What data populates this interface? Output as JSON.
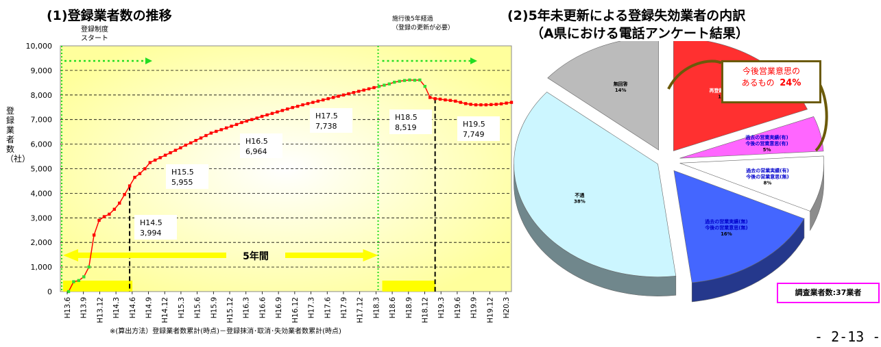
{
  "chart_data": [
    {
      "type": "line",
      "title": "(1)登録業者数の推移",
      "ylabel": "登録業者数（社）",
      "ylim": [
        0,
        10000
      ],
      "yticks": [
        "0",
        "1,000",
        "2,000",
        "3,000",
        "4,000",
        "5,000",
        "6,000",
        "7,000",
        "8,000",
        "9,000",
        "10,000"
      ],
      "grid": true,
      "xticks": [
        "H13.6",
        "H13.9",
        "H13.12",
        "H14.3",
        "H14.6",
        "H14.9",
        "H14.12",
        "H15.3",
        "H15.6",
        "H15.9",
        "H15.12",
        "H16.3",
        "H16.6",
        "H16.9",
        "H16.12",
        "H17.3",
        "H17.6",
        "H17.9",
        "H17.12",
        "H18.3",
        "H18.6",
        "H18.9",
        "H18.12",
        "H19.3",
        "H19.6",
        "H19.9",
        "H19.12",
        "H20.3"
      ],
      "series": [
        {
          "values": [
            0,
            400,
            450,
            600,
            1000,
            2300,
            2900,
            3050,
            3150,
            3350,
            3600,
            3950,
            4300,
            4650,
            4800,
            5000,
            5250,
            5350,
            5450,
            5550,
            5650,
            5750,
            5850,
            5960,
            6050,
            6150,
            6250,
            6350,
            6450,
            6520,
            6590,
            6660,
            6730,
            6800,
            6880,
            6940,
            7000,
            7060,
            7130,
            7190,
            7250,
            7310,
            7370,
            7430,
            7490,
            7540,
            7600,
            7650,
            7700,
            7750,
            7800,
            7850,
            7900,
            7950,
            8000,
            8050,
            8100,
            8150,
            8200,
            8250,
            8300,
            8350,
            8400,
            8450,
            8520,
            8560,
            8590,
            8610,
            8600,
            8610,
            8350,
            7900,
            7850,
            7830,
            7800,
            7780,
            7750,
            7700,
            7650,
            7620,
            7600,
            7600,
            7600,
            7610,
            7620,
            7640,
            7670,
            7700
          ]
        }
      ],
      "annotations": [
        {
          "label": "H14.5",
          "value": "3,994"
        },
        {
          "label": "H15.5",
          "value": "5,955"
        },
        {
          "label": "H16.5",
          "value": "6,964"
        },
        {
          "label": "H17.5",
          "value": "7,738"
        },
        {
          "label": "H18.5",
          "value": "8,519"
        },
        {
          "label": "H19.5",
          "value": "7,749"
        }
      ],
      "period_label": "5年間",
      "start_note": "登録制度\nスタート",
      "renewal_note": "施行後5年経過\n（登録の更新が必要）",
      "footnote": "※(算出方法）登録業者数累計(時点)－登録抹消･取消･失効業者数累計(時点)"
    },
    {
      "type": "pie",
      "title_line1": "(2)5年未更新による登録失効業者の内訳",
      "title_line2": "（A県における電話アンケート結果）",
      "slices": [
        {
          "label": "再登録済業者",
          "value": 19,
          "pct": "19%",
          "color": "#ff3030"
        },
        {
          "label": "過去の営業実績(有)\n今後の営業意思(有)",
          "value": 5,
          "pct": "5%",
          "color": "#ff66ff"
        },
        {
          "label": "過去の営業実績(有)\n今後の営業意思(無)",
          "value": 8,
          "pct": "8%",
          "color": "#ffffff"
        },
        {
          "label": "過去の営業実績(無)\n今後の営業意思(無)",
          "value": 16,
          "pct": "16%",
          "color": "#4466ff"
        },
        {
          "label": "不通",
          "value": 38,
          "pct": "38%",
          "color": "#ccf6ff"
        },
        {
          "label": "無回答",
          "value": 14,
          "pct": "14%",
          "color": "#bbbbbb"
        }
      ],
      "callout_line1": "今後営業意思の",
      "callout_line2": "あるもの",
      "callout_pct": "24%",
      "survey_note": "調査業者数:37業者"
    }
  ],
  "page_number": "- 2-13 -"
}
